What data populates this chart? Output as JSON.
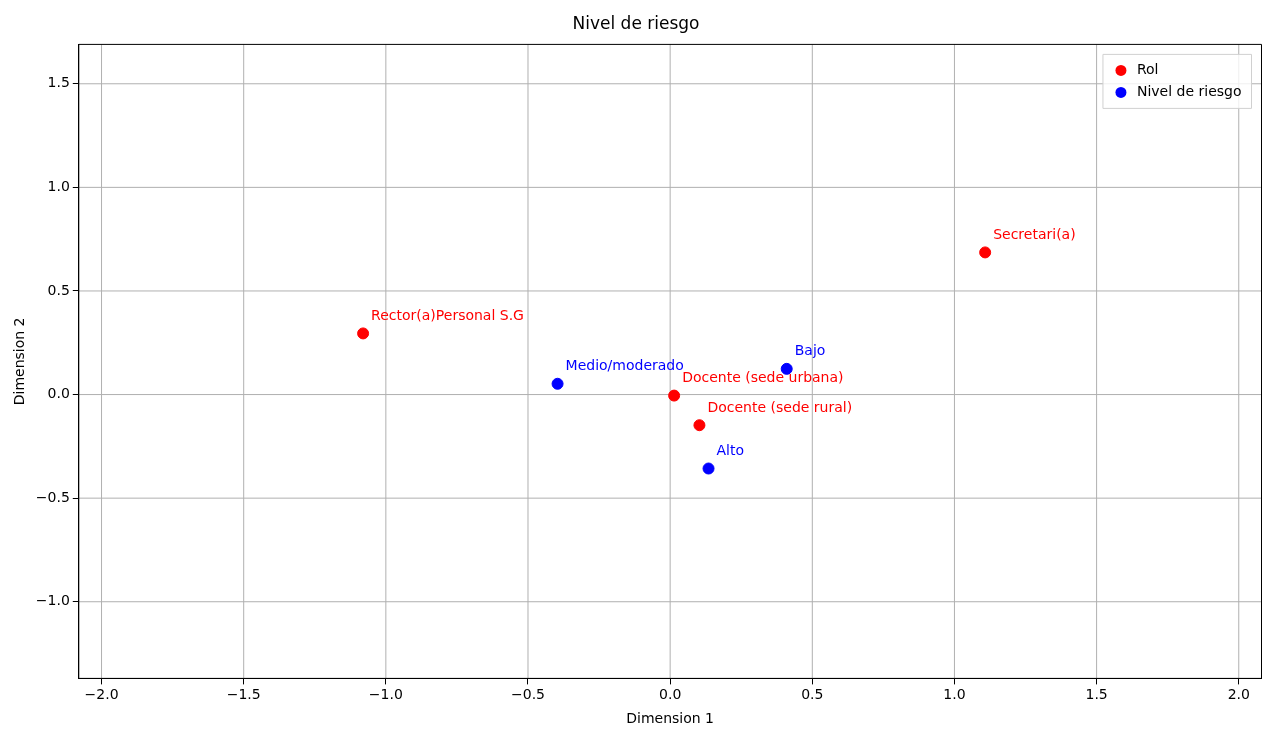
{
  "chart_data": {
    "type": "scatter",
    "title": "Nivel de riesgo",
    "xlabel": "Dimension 1",
    "ylabel": "Dimension 2",
    "series": [
      {
        "name": "Rol",
        "color": "#ff0000",
        "x": [
          -1.08,
          1.108,
          0.014,
          0.103
        ],
        "values": [
          0.295,
          0.686,
          -0.005,
          -0.148
        ]
      },
      {
        "name": "Nivel de riesgo",
        "color": "#0000ff",
        "x": [
          -0.396,
          0.41,
          0.135
        ],
        "values": [
          0.052,
          0.124,
          -0.357
        ]
      }
    ],
    "annotations": [
      {
        "text": "Rector(a)Personal S.G",
        "x": -1.08,
        "y": 0.295
      },
      {
        "text": "Secretari(a)",
        "x": 1.108,
        "y": 0.686
      },
      {
        "text": "Docente (sede urbana)",
        "x": 0.014,
        "y": -0.005
      },
      {
        "text": "Docente (sede rural)",
        "x": 0.103,
        "y": -0.148
      },
      {
        "text": "Medio/moderado",
        "x": -0.396,
        "y": 0.052
      },
      {
        "text": "Bajo",
        "x": 0.41,
        "y": 0.124
      },
      {
        "text": "Alto",
        "x": 0.135,
        "y": -0.357
      }
    ],
    "xlim": [
      -2.08,
      2.08
    ],
    "ylim": [
      -1.37,
      1.69
    ],
    "xticks": [
      {
        "value": -2,
        "label": "−2.0"
      },
      {
        "value": -1.5,
        "label": "−1.5"
      },
      {
        "value": -1,
        "label": "−1.0"
      },
      {
        "value": -0.5,
        "label": "−0.5"
      },
      {
        "value": 0,
        "label": "0.0"
      },
      {
        "value": 0.5,
        "label": "0.5"
      },
      {
        "value": 1,
        "label": "1.0"
      },
      {
        "value": 1.5,
        "label": "1.5"
      },
      {
        "value": 2,
        "label": "2.0"
      }
    ],
    "yticks": [
      {
        "value": -1,
        "label": "−1.0"
      },
      {
        "value": -0.5,
        "label": "−0.5"
      },
      {
        "value": 0,
        "label": "0.0"
      },
      {
        "value": 0.5,
        "label": "0.5"
      },
      {
        "value": 1,
        "label": "1.0"
      },
      {
        "value": 1.5,
        "label": "1.5"
      }
    ],
    "grid": true,
    "legend": "top right",
    "marker": "circle"
  }
}
